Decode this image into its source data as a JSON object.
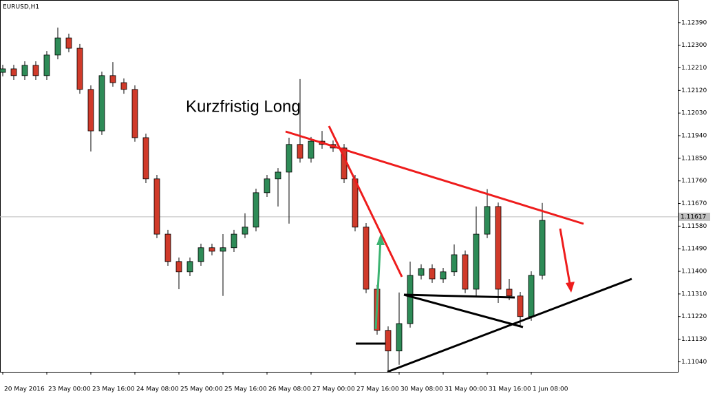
{
  "chart_data": {
    "type": "candlestick",
    "title": "EURUSD,H1",
    "annotation": "Kurzfristig Long",
    "up_color": "#2e8b57",
    "down_color": "#d03a2a",
    "current_price": 1.11617,
    "x": [
      0,
      4,
      8,
      12,
      16,
      20,
      24,
      28,
      32,
      36,
      40,
      44,
      48,
      52,
      56,
      60,
      64,
      68,
      72,
      76,
      80,
      84,
      88,
      92,
      96,
      100,
      104,
      108,
      112,
      116,
      120,
      124,
      128,
      132,
      136,
      140,
      144,
      148,
      152,
      156,
      160,
      164,
      168,
      172,
      176,
      180,
      184,
      188,
      192,
      196
    ],
    "open": [
      1.12192,
      1.12206,
      1.12179,
      1.1222,
      1.12179,
      1.12261,
      1.12329,
      1.12288,
      1.12124,
      1.11959,
      1.12179,
      1.12151,
      1.12124,
      1.11932,
      1.11768,
      1.11548,
      1.11439,
      1.11398,
      1.11439,
      1.11494,
      1.1148,
      1.11494,
      1.11548,
      1.11576,
      1.11713,
      1.11768,
      1.11795,
      1.11905,
      1.1185,
      1.11918,
      1.11905,
      1.11891,
      1.11768,
      1.11576,
      1.11329,
      1.11165,
      1.11083,
      1.11192,
      1.11384,
      1.11411,
      1.1137,
      1.11398,
      1.11466,
      1.11329,
      1.11548,
      1.11658,
      1.11329,
      1.11302,
      1.1122,
      1.11384
    ],
    "high": [
      1.12222,
      1.12222,
      1.12236,
      1.12236,
      1.12277,
      1.1237,
      1.12346,
      1.12305,
      1.1214,
      1.12195,
      1.12233,
      1.12168,
      1.1214,
      1.11948,
      1.11784,
      1.11565,
      1.11455,
      1.11455,
      1.1151,
      1.1151,
      1.11548,
      1.11565,
      1.11631,
      1.11729,
      1.11784,
      1.11811,
      1.11932,
      1.12165,
      1.11935,
      1.11959,
      1.11921,
      1.11907,
      1.11784,
      1.11592,
      1.11346,
      1.11181,
      1.11316,
      1.11439,
      1.11428,
      1.11428,
      1.11414,
      1.11507,
      1.11483,
      1.11658,
      1.11727,
      1.11674,
      1.1137,
      1.11318,
      1.114,
      1.11672
    ],
    "low": [
      1.12176,
      1.12162,
      1.12162,
      1.12162,
      1.12162,
      1.12244,
      1.12272,
      1.12107,
      1.11877,
      1.11943,
      1.12135,
      1.12107,
      1.11916,
      1.11751,
      1.11532,
      1.11422,
      1.11329,
      1.11381,
      1.11422,
      1.11464,
      1.11302,
      1.11477,
      1.11532,
      1.11559,
      1.11696,
      1.11658,
      1.1159,
      1.11833,
      1.11833,
      1.11888,
      1.11875,
      1.11751,
      1.11559,
      1.11313,
      1.11148,
      1.11,
      1.11028,
      1.11176,
      1.11368,
      1.11354,
      1.11354,
      1.11381,
      1.11313,
      1.11302,
      1.11532,
      1.11274,
      1.11285,
      1.11179,
      1.11203,
      1.11368
    ],
    "close": [
      1.12206,
      1.12179,
      1.1222,
      1.12179,
      1.12261,
      1.12329,
      1.12288,
      1.12124,
      1.11959,
      1.12179,
      1.12151,
      1.12124,
      1.11932,
      1.11768,
      1.11548,
      1.11439,
      1.11398,
      1.11439,
      1.11494,
      1.1148,
      1.11494,
      1.11548,
      1.11576,
      1.11713,
      1.11768,
      1.11795,
      1.11905,
      1.1185,
      1.11918,
      1.11905,
      1.11891,
      1.11768,
      1.11576,
      1.11329,
      1.11165,
      1.11083,
      1.11192,
      1.11384,
      1.11411,
      1.1137,
      1.11398,
      1.11466,
      1.11329,
      1.11548,
      1.11658,
      1.11329,
      1.11302,
      1.1122,
      1.11384,
      1.11603
    ],
    "xlim": [
      -1,
      245.25
    ],
    "ylim": [
      1.11,
      1.1248
    ],
    "xticks": [
      {
        "value": 0,
        "label": "20 May 2016"
      },
      {
        "value": 16,
        "label": "23 May 00:00"
      },
      {
        "value": 32,
        "label": "23 May 16:00"
      },
      {
        "value": 48,
        "label": "24 May 08:00"
      },
      {
        "value": 64,
        "label": "25 May 00:00"
      },
      {
        "value": 80,
        "label": "25 May 16:00"
      },
      {
        "value": 96,
        "label": "26 May 08:00"
      },
      {
        "value": 112,
        "label": "27 May 00:00"
      },
      {
        "value": 128,
        "label": "27 May 16:00"
      },
      {
        "value": 144,
        "label": "30 May 08:00"
      },
      {
        "value": 160,
        "label": "31 May 00:00"
      },
      {
        "value": 176,
        "label": "31 May 16:00"
      },
      {
        "value": 192,
        "label": "1 Jun 08:00"
      }
    ],
    "yticks": [
      {
        "value": 1.1239,
        "label": "1.12390"
      },
      {
        "value": 1.123,
        "label": "1.12300"
      },
      {
        "value": 1.1221,
        "label": "1.12210"
      },
      {
        "value": 1.1212,
        "label": "1.12120"
      },
      {
        "value": 1.1203,
        "label": "1.12030"
      },
      {
        "value": 1.1194,
        "label": "1.11940"
      },
      {
        "value": 1.1185,
        "label": "1.11850"
      },
      {
        "value": 1.1176,
        "label": "1.11760"
      },
      {
        "value": 1.1167,
        "label": "1.11670"
      },
      {
        "value": 1.1158,
        "label": "1.11580"
      },
      {
        "value": 1.1149,
        "label": "1.11490"
      },
      {
        "value": 1.114,
        "label": "1.11400"
      },
      {
        "value": 1.1131,
        "label": "1.11310"
      },
      {
        "value": 1.1122,
        "label": "1.11220"
      },
      {
        "value": 1.1113,
        "label": "1.11130"
      },
      {
        "value": 1.1104,
        "label": "1.11040"
      }
    ],
    "grid": false
  }
}
